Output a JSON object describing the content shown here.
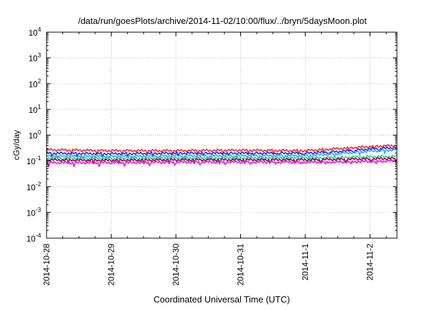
{
  "chart_data": {
    "type": "line",
    "title": "/data/run/goesPlots/archive/2014-11-02/10:00/flux/../bryn/5daysMoon.plot",
    "xlabel": "Coordinated Universal Time (UTC)",
    "ylabel": "cGy/day",
    "yscale": "log",
    "ylim": [
      0.0001,
      10000
    ],
    "xlim": [
      "2014-10-28T00:00",
      "2014-11-02T10:00"
    ],
    "grid": true,
    "x_ticks": [
      "2014-10-28",
      "2014-10-29",
      "2014-10-30",
      "2014-10-31",
      "2014-11-1",
      "2014-11-2"
    ],
    "y_ticks": [
      {
        "base": "10",
        "exp": "-4"
      },
      {
        "base": "10",
        "exp": "-3"
      },
      {
        "base": "10",
        "exp": "-2"
      },
      {
        "base": "10",
        "exp": "-1"
      },
      {
        "base": "10",
        "exp": "0"
      },
      {
        "base": "10",
        "exp": "1"
      },
      {
        "base": "10",
        "exp": "2"
      },
      {
        "base": "10",
        "exp": "3"
      },
      {
        "base": "10",
        "exp": "4"
      }
    ],
    "series": [
      {
        "color": "#ff2222",
        "x": [
          "2014-10-28",
          "2014-10-29",
          "2014-10-30",
          "2014-10-31",
          "2014-11-01",
          "2014-11-01T12:00",
          "2014-11-02",
          "2014-11-02T10:00"
        ],
        "values": [
          0.27,
          0.25,
          0.25,
          0.26,
          0.25,
          0.3,
          0.36,
          0.4
        ]
      },
      {
        "color": "#2222ff",
        "x": [
          "2014-10-28",
          "2014-10-29",
          "2014-10-30",
          "2014-10-31",
          "2014-11-01",
          "2014-11-01T12:00",
          "2014-11-02",
          "2014-11-02T10:00"
        ],
        "values": [
          0.2,
          0.19,
          0.2,
          0.2,
          0.2,
          0.23,
          0.29,
          0.33
        ]
      },
      {
        "color": "#22aaff",
        "x": [
          "2014-10-28",
          "2014-10-29",
          "2014-10-30",
          "2014-10-31",
          "2014-11-01",
          "2014-11-01T12:00",
          "2014-11-02",
          "2014-11-02T10:00"
        ],
        "values": [
          0.16,
          0.15,
          0.16,
          0.16,
          0.16,
          0.19,
          0.24,
          0.27
        ]
      },
      {
        "color": "#22cc88",
        "x": [
          "2014-10-28",
          "2014-10-29",
          "2014-10-30",
          "2014-10-31",
          "2014-11-01",
          "2014-11-01T12:00",
          "2014-11-02",
          "2014-11-02T10:00"
        ],
        "values": [
          0.13,
          0.125,
          0.13,
          0.13,
          0.13,
          0.135,
          0.145,
          0.15
        ]
      },
      {
        "color": "#990033",
        "x": [
          "2014-10-28",
          "2014-10-29",
          "2014-10-30",
          "2014-10-31",
          "2014-11-01",
          "2014-11-01T12:00",
          "2014-11-02",
          "2014-11-02T10:00"
        ],
        "values": [
          0.11,
          0.105,
          0.11,
          0.11,
          0.11,
          0.115,
          0.12,
          0.125
        ]
      },
      {
        "color": "#ff00ff",
        "x": [
          "2014-10-28",
          "2014-10-29",
          "2014-10-30",
          "2014-10-31",
          "2014-11-01",
          "2014-11-01T12:00",
          "2014-11-02",
          "2014-11-02T10:00"
        ],
        "values": [
          0.085,
          0.085,
          0.09,
          0.09,
          0.09,
          0.09,
          0.095,
          0.1
        ]
      }
    ]
  }
}
